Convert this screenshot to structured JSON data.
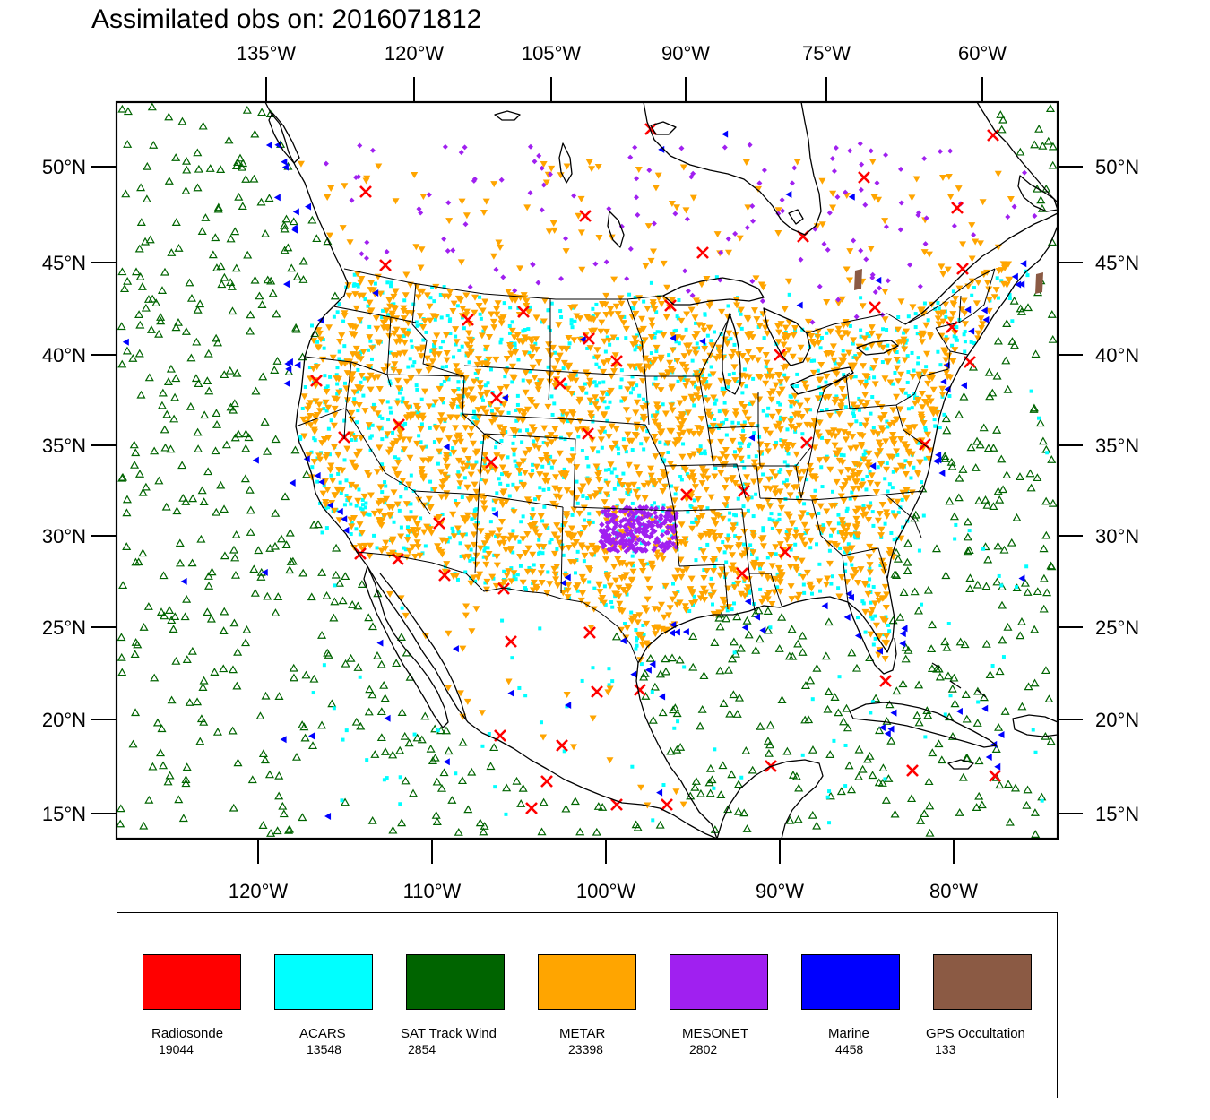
{
  "title": "Assimilated obs on: 2016071812",
  "top_lon_labels": [
    "135°W",
    "120°W",
    "105°W",
    "90°W",
    "75°W",
    "60°W"
  ],
  "bottom_lon_labels": [
    "120°W",
    "110°W",
    "100°W",
    "90°W",
    "80°W"
  ],
  "lat_labels": [
    "50°N",
    "45°N",
    "40°N",
    "35°N",
    "30°N",
    "25°N",
    "20°N",
    "15°N"
  ],
  "legend": [
    {
      "name": "Radiosonde",
      "count": "19044",
      "color": "#ff0000"
    },
    {
      "name": "ACARS",
      "count": "13548",
      "color": "#00ffff"
    },
    {
      "name": "SAT Track Wind",
      "count": "2854",
      "color": "#006400"
    },
    {
      "name": "METAR",
      "count": "23398",
      "color": "#ffa500"
    },
    {
      "name": "MESONET",
      "count": "2802",
      "color": "#a020f0"
    },
    {
      "name": "Marine",
      "count": "4458",
      "color": "#0000ff"
    },
    {
      "name": "GPS Occultation",
      "count": "133",
      "color": "#8b5a44"
    }
  ]
}
